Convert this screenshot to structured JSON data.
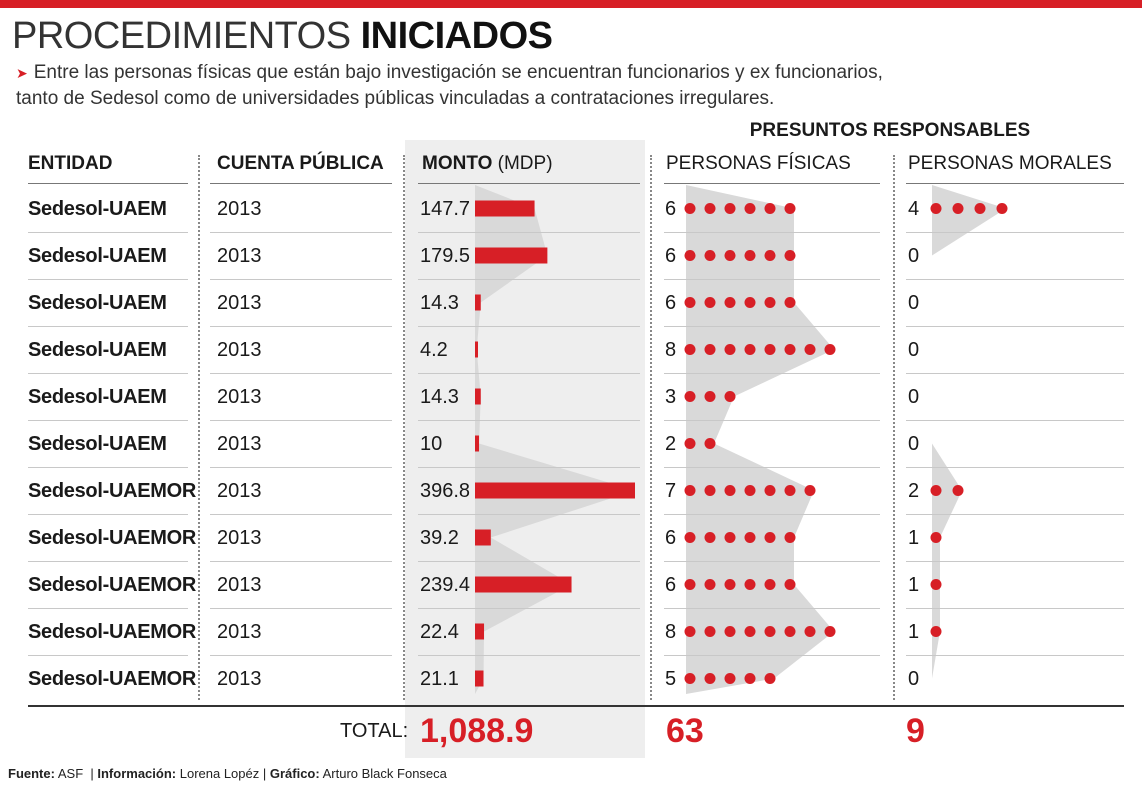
{
  "header": {
    "title_light": "PROCEDIMIENTOS",
    "title_bold": "INICIADOS",
    "subtitle_line1": "Entre las personas físicas que están bajo investigación se encuentran funcionarios y ex funcionarios,",
    "subtitle_line2": "tanto de Sedesol como de universidades públicas vinculadas a contrataciones irregulares."
  },
  "colors": {
    "accent": "#d71f26",
    "band": "#eeeeee",
    "silhouette": "#d9d9d9"
  },
  "columns": {
    "group_title": "PRESUNTOS RESPONSABLES",
    "entidad": "ENTIDAD",
    "cuenta": "CUENTA PÚBLICA",
    "monto": "MONTO",
    "monto_unit": "(MDP)",
    "fisicas": "PERSONAS FÍSICAS",
    "morales": "PERSONAS MORALES"
  },
  "chart_data": {
    "type": "table",
    "rows": [
      {
        "entidad": "Sedesol-UAEM",
        "cuenta": "2013",
        "monto": "147.7",
        "fisicas": 6,
        "morales": 4
      },
      {
        "entidad": "Sedesol-UAEM",
        "cuenta": "2013",
        "monto": "179.5",
        "fisicas": 6,
        "morales": 0
      },
      {
        "entidad": "Sedesol-UAEM",
        "cuenta": "2013",
        "monto": "14.3",
        "fisicas": 6,
        "morales": 0
      },
      {
        "entidad": "Sedesol-UAEM",
        "cuenta": "2013",
        "monto": "4.2",
        "fisicas": 8,
        "morales": 0
      },
      {
        "entidad": "Sedesol-UAEM",
        "cuenta": "2013",
        "monto": "14.3",
        "fisicas": 3,
        "morales": 0
      },
      {
        "entidad": "Sedesol-UAEM",
        "cuenta": "2013",
        "monto": "10",
        "fisicas": 2,
        "morales": 0
      },
      {
        "entidad": "Sedesol-UAEMOR",
        "cuenta": "2013",
        "monto": "396.8",
        "fisicas": 7,
        "morales": 2
      },
      {
        "entidad": "Sedesol-UAEMOR",
        "cuenta": "2013",
        "monto": "39.2",
        "fisicas": 6,
        "morales": 1
      },
      {
        "entidad": "Sedesol-UAEMOR",
        "cuenta": "2013",
        "monto": "239.4",
        "fisicas": 6,
        "morales": 1
      },
      {
        "entidad": "Sedesol-UAEMOR",
        "cuenta": "2013",
        "monto": "22.4",
        "fisicas": 8,
        "morales": 1
      },
      {
        "entidad": "Sedesol-UAEMOR",
        "cuenta": "2013",
        "monto": "21.1",
        "fisicas": 5,
        "morales": 0
      }
    ],
    "total_label": "TOTAL:",
    "total_monto": "1,088.9",
    "total_fisicas": "63",
    "total_morales": "9"
  },
  "footer": {
    "fuente_label": "Fuente:",
    "fuente": "ASF",
    "info_label": "Información:",
    "info": "Lorena Lopéz",
    "grafico_label": "Gráfico:",
    "grafico": "Arturo Black Fonseca"
  }
}
